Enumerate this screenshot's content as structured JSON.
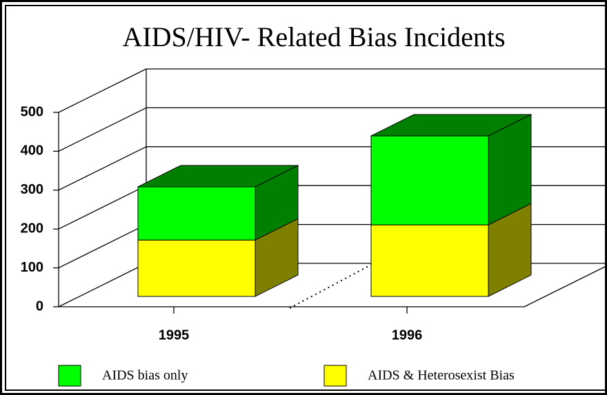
{
  "chart_data": {
    "type": "bar3d_stacked",
    "title": "AIDS/HIV- Related Bias Incidents",
    "categories": [
      "1995",
      "1996"
    ],
    "series": [
      {
        "name": "AIDS bias only",
        "color": "#00ff00",
        "values": [
          137,
          229
        ]
      },
      {
        "name": "AIDS & Heterosexist Bias",
        "color": "#ffff00",
        "values": [
          145,
          184
        ]
      }
    ],
    "ylim": [
      0,
      500
    ],
    "yticks": [
      0,
      100,
      200,
      300,
      400,
      500
    ],
    "grid": true,
    "legend": "bottom"
  }
}
